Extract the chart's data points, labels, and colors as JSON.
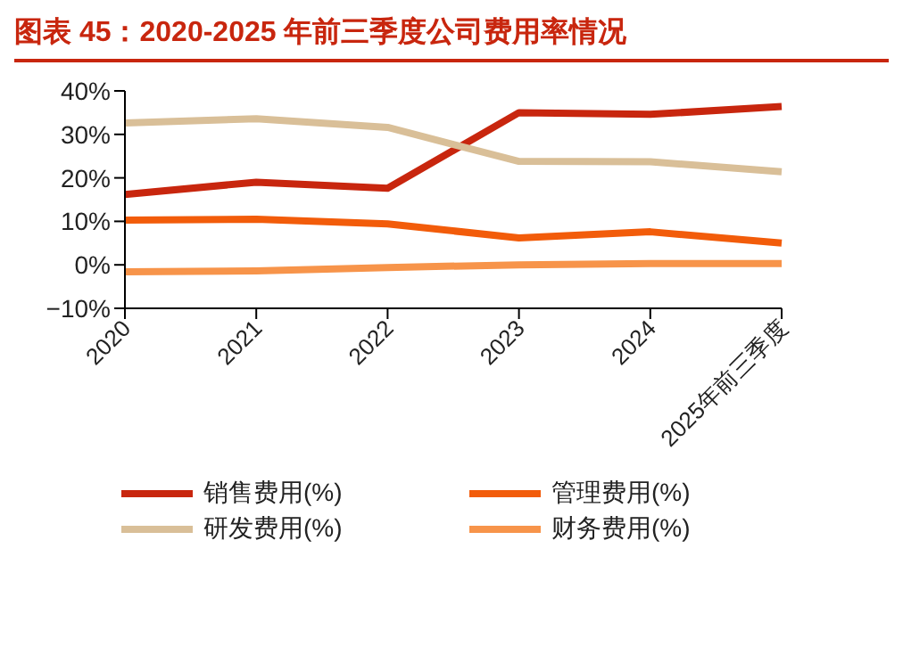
{
  "chart_data": {
    "type": "line",
    "title": "图表 45：2020-2025 年前三季度公司费用率情况",
    "categories": [
      "2020",
      "2021",
      "2022",
      "2023",
      "2024",
      "2025年前三季度"
    ],
    "series": [
      {
        "name": "销售费用(%)",
        "color": "#c8260e",
        "values": [
          16.2,
          19,
          17.6,
          35,
          34.6,
          36.4
        ]
      },
      {
        "name": "管理费用(%)",
        "color": "#f25c0a",
        "values": [
          10.3,
          10.5,
          9.4,
          6.2,
          7.6,
          5
        ]
      },
      {
        "name": "研发费用(%)",
        "color": "#d9bf98",
        "values": [
          32.6,
          33.6,
          31.6,
          23.8,
          23.7,
          21.4
        ]
      },
      {
        "name": "财务费用(%)",
        "color": "#f7944a",
        "values": [
          -1.6,
          -1.4,
          -0.6,
          0,
          0.3,
          0.3
        ]
      }
    ],
    "ylim": [
      -10,
      40
    ],
    "yticks": [
      {
        "value": -10,
        "label": "−10%"
      },
      {
        "value": 0,
        "label": "0%"
      },
      {
        "value": 10,
        "label": "10%"
      },
      {
        "value": 20,
        "label": "20%"
      },
      {
        "value": 30,
        "label": "30%"
      },
      {
        "value": 40,
        "label": "40%"
      }
    ],
    "grid": false,
    "legend": "bottom",
    "marker": "none",
    "line_style": "solid"
  }
}
